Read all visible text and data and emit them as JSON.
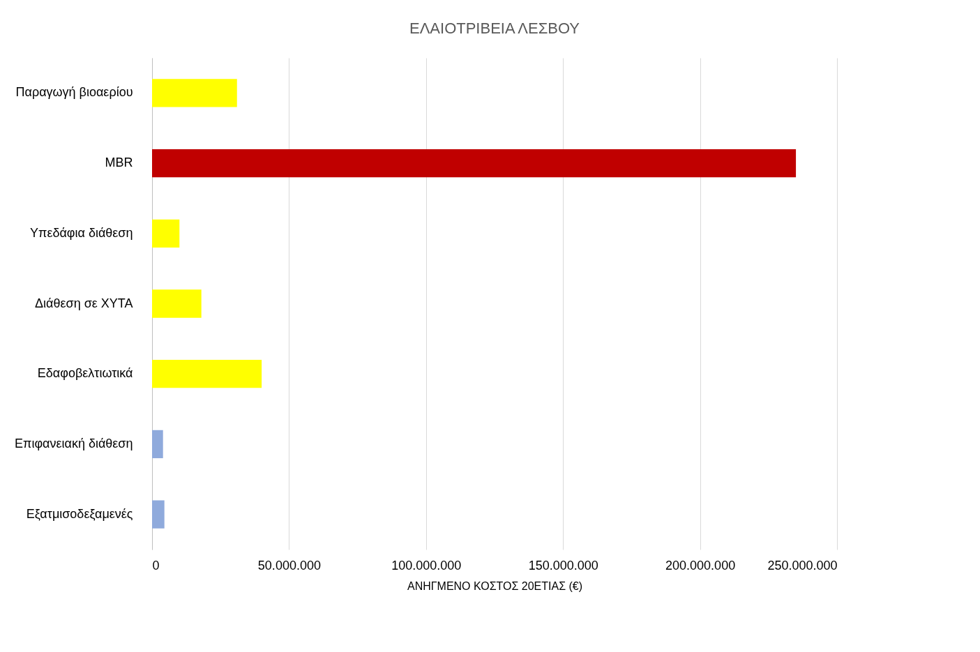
{
  "chart_data": {
    "type": "bar",
    "orientation": "horizontal",
    "title": "ΕΛΑΙΟΤΡΙΒΕΙΑ ΛΕΣΒΟΥ",
    "xlabel": "ΑΝΗΓΜΕΝΟ ΚΟΣΤΟΣ 20ΕΤΙΑΣ (€)",
    "categories": [
      "Παραγωγή βιοαερίου",
      "MBR",
      "Υπεδάφια διάθεση",
      "Διάθεση σε ΧΥΤΑ",
      "Εδαφοβελτιωτικά",
      "Επιφανειακή διάθεση",
      "Εξατμισοδεξαμενές"
    ],
    "values": [
      31000000,
      235000000,
      10000000,
      18000000,
      40000000,
      4000000,
      4500000
    ],
    "colors": [
      "#ffff00",
      "#c00000",
      "#ffff00",
      "#ffff00",
      "#ffff00",
      "#8faadc",
      "#8faadc"
    ],
    "xlim": [
      0,
      250000000
    ],
    "xticks": [
      0,
      {
        "value": 50000000,
        "label": "50.000.000"
      },
      {
        "value": 100000000,
        "label": "100.000.000"
      },
      {
        "value": 150000000,
        "label": "150.000.000"
      },
      {
        "value": 200000000,
        "label": "200.000.000"
      },
      {
        "value": 250000000,
        "label": "250.000.000"
      }
    ],
    "grid": "x"
  }
}
